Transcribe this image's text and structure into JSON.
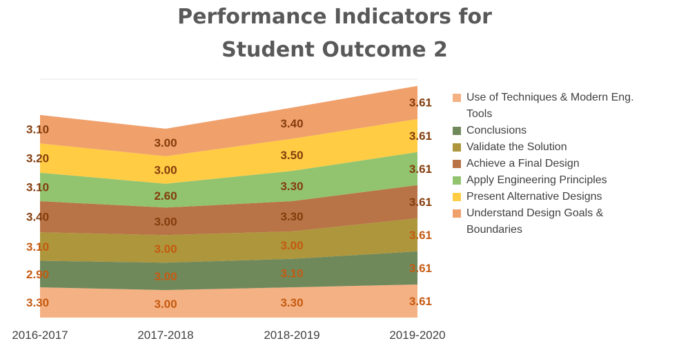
{
  "chart_data": {
    "type": "area",
    "stacked": true,
    "title_lines": [
      "Performance Indicators for",
      "Student Outcome 2"
    ],
    "categories": [
      "2016-2017",
      "2017-2018",
      "2018-2019",
      "2019-2020"
    ],
    "series": [
      {
        "name": "Use of Techniques & Modern Eng. Tools",
        "values": [
          3.3,
          3.0,
          3.3,
          3.61
        ],
        "color": "#F4B183",
        "label_color": "#C55A11"
      },
      {
        "name": "Conclusions",
        "values": [
          2.9,
          3.0,
          3.1,
          3.61
        ],
        "color": "#70895B",
        "label_color": "#C55A11"
      },
      {
        "name": "Validate the Solution",
        "values": [
          3.1,
          3.0,
          3.0,
          3.61
        ],
        "color": "#AD963C",
        "label_color": "#C55A11"
      },
      {
        "name": "Achieve a Final Design",
        "values": [
          3.4,
          3.0,
          3.3,
          3.61
        ],
        "color": "#B87446",
        "label_color": "#843C0C"
      },
      {
        "name": "Apply Engineering Principles",
        "values": [
          3.1,
          2.6,
          3.3,
          3.61
        ],
        "color": "#92C46F",
        "label_color": "#843C0C"
      },
      {
        "name": "Present Alternative Designs",
        "values": [
          3.2,
          3.0,
          3.5,
          3.61
        ],
        "color": "#FFCC44",
        "label_color": "#843C0C"
      },
      {
        "name": "Understand Design Goals & Boundaries",
        "values": [
          3.1,
          3.0,
          3.4,
          3.61
        ],
        "color": "#F0A06B",
        "label_color": "#843C0C"
      }
    ],
    "legend_order": [
      0,
      1,
      2,
      3,
      4,
      5,
      6
    ],
    "legend_lines": [
      [
        "Use of Techniques & Modern Eng.",
        "Tools"
      ],
      [
        "Conclusions"
      ],
      [
        "Validate the Solution"
      ],
      [
        "Achieve a Final Design"
      ],
      [
        "Apply Engineering Principles"
      ],
      [
        "Present Alternative Designs"
      ],
      [
        "Understand Design Goals &",
        "Boundaries"
      ]
    ],
    "legend_position": "right",
    "ylim": [
      0,
      26
    ],
    "grid": true,
    "xlabel": "",
    "ylabel": ""
  }
}
